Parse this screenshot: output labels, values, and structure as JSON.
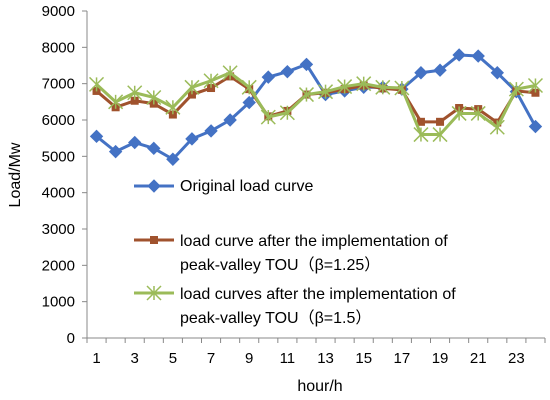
{
  "chart_data": {
    "type": "line",
    "xlabel": "hour/h",
    "ylabel": "Load/Mw",
    "x": [
      1,
      2,
      3,
      4,
      5,
      6,
      7,
      8,
      9,
      10,
      11,
      12,
      13,
      14,
      15,
      16,
      17,
      18,
      19,
      20,
      21,
      22,
      23,
      24
    ],
    "xticks": [
      1,
      3,
      5,
      7,
      9,
      11,
      13,
      15,
      17,
      19,
      21,
      23
    ],
    "xlim": [
      0.5,
      24.5
    ],
    "ylim": [
      0,
      9000
    ],
    "yticks": [
      0,
      1000,
      2000,
      3000,
      4000,
      5000,
      6000,
      7000,
      8000,
      9000
    ],
    "grid": "none",
    "legend_position": "lower-left inside plot",
    "series": [
      {
        "name": "Original load curve",
        "color": "#4472C4",
        "marker": "diamond",
        "values": [
          5550,
          5130,
          5380,
          5220,
          4920,
          5480,
          5700,
          6000,
          6480,
          7180,
          7330,
          7530,
          6700,
          6800,
          6900,
          6900,
          6850,
          7300,
          7370,
          7790,
          7760,
          7300,
          6780,
          5820
        ]
      },
      {
        "name": "load curve after the implementation of peak-valley TOU（β=1.25）",
        "legend_lines": [
          "load curve after the implementation of",
          "peak-valley TOU（β=1.25）"
        ],
        "color": "#A0522D",
        "marker": "square",
        "values": [
          6800,
          6350,
          6530,
          6450,
          6150,
          6700,
          6880,
          7200,
          6850,
          6100,
          6250,
          6700,
          6750,
          6850,
          6950,
          6870,
          6830,
          5950,
          5950,
          6330,
          6300,
          5930,
          6800,
          6750
        ]
      },
      {
        "name": "load curves after the implementation of peak-valley TOU（β=1.5）",
        "legend_lines": [
          "load curves after the implementation of",
          "peak-valley TOU（β=1.5）"
        ],
        "color": "#9BBB59",
        "marker": "star",
        "values": [
          6980,
          6500,
          6750,
          6620,
          6350,
          6900,
          7080,
          7300,
          6900,
          6080,
          6200,
          6700,
          6780,
          6920,
          7000,
          6900,
          6880,
          5600,
          5600,
          6180,
          6180,
          5800,
          6850,
          6950
        ]
      }
    ]
  }
}
